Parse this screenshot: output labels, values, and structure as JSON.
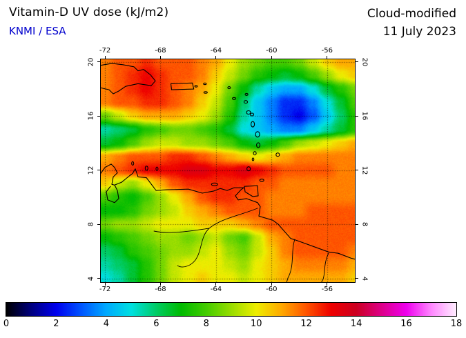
{
  "header": {
    "title": "Vitamin-D UV dose (kJ/m2)",
    "source": "KNMI / ESA",
    "mode": "Cloud-modified",
    "date": "11 July 2023"
  },
  "axes": {
    "lon_ticks": [
      {
        "v": -72,
        "label": "-72"
      },
      {
        "v": -68,
        "label": "-68"
      },
      {
        "v": -64,
        "label": "-64"
      },
      {
        "v": -60,
        "label": "-60"
      },
      {
        "v": -56,
        "label": "-56"
      }
    ],
    "lat_ticks": [
      {
        "v": 20,
        "label": "20"
      },
      {
        "v": 16,
        "label": "16"
      },
      {
        "v": 12,
        "label": "12"
      },
      {
        "v": 8,
        "label": "8"
      },
      {
        "v": 4,
        "label": "4"
      }
    ]
  },
  "colorbar": {
    "min": 0,
    "max": 18,
    "ticks": [
      {
        "v": 0,
        "label": "0"
      },
      {
        "v": 2,
        "label": "2"
      },
      {
        "v": 4,
        "label": "4"
      },
      {
        "v": 6,
        "label": "6"
      },
      {
        "v": 8,
        "label": "8"
      },
      {
        "v": 10,
        "label": "10"
      },
      {
        "v": 12,
        "label": "12"
      },
      {
        "v": 14,
        "label": "14"
      },
      {
        "v": 16,
        "label": "16"
      },
      {
        "v": 18,
        "label": "18"
      }
    ]
  },
  "chart_data": {
    "type": "heatmap",
    "title": "Vitamin-D UV dose (kJ/m2)",
    "subtitle": "Cloud-modified 11 July 2023",
    "source": "KNMI / ESA",
    "units": "kJ/m2",
    "scale_range": [
      0,
      18
    ],
    "view": {
      "lon_min": -72.35,
      "lon_max": -53.95,
      "lat_max": 20.25,
      "lat_min": 3.67
    },
    "lon": [
      -72,
      -71,
      -70,
      -69,
      -68,
      -67,
      -66,
      -65,
      -64,
      -63,
      -62,
      -61,
      -60,
      -59,
      -58,
      -57,
      -56,
      -55,
      -54
    ],
    "lat": [
      20,
      19,
      18,
      17,
      16,
      15,
      14,
      13,
      12,
      11,
      10,
      9,
      8,
      7,
      6,
      5,
      4
    ],
    "values": [
      [
        11.5,
        12,
        12,
        12.5,
        12,
        12,
        12,
        11.5,
        11,
        10,
        9,
        8.5,
        8,
        8,
        8.5,
        9.5,
        10.5,
        11,
        11
      ],
      [
        11.5,
        12,
        12.5,
        13,
        12.5,
        12,
        12,
        11.5,
        10.5,
        9.5,
        8.5,
        7.5,
        7,
        6.5,
        7,
        8,
        9,
        10,
        10.5
      ],
      [
        11.5,
        12,
        12.5,
        13,
        12.5,
        12,
        11.5,
        11,
        10,
        8.5,
        7,
        5.5,
        4.5,
        4,
        4,
        5,
        6.5,
        7.5,
        8.5
      ],
      [
        11.5,
        12,
        12,
        12.5,
        12.5,
        12,
        11.5,
        10.5,
        9.5,
        8,
        6,
        4.5,
        3.5,
        2.5,
        2.5,
        3.5,
        5,
        6.5,
        8
      ],
      [
        8.5,
        9.5,
        10.5,
        11,
        11,
        11,
        10.5,
        10,
        9,
        7.5,
        5.5,
        4.5,
        3.5,
        2.5,
        2,
        3,
        4.5,
        6,
        7.5
      ],
      [
        5.5,
        6,
        6.5,
        7.5,
        8,
        8.5,
        8.5,
        8,
        7.5,
        6.5,
        5,
        4.5,
        4,
        3.5,
        3.5,
        4.5,
        5.5,
        6.5,
        7.5
      ],
      [
        6.5,
        7,
        8,
        9,
        9.5,
        9.5,
        9,
        9,
        8.5,
        8,
        7,
        6.5,
        7,
        8,
        9,
        9.5,
        10,
        10.5,
        11
      ],
      [
        11,
        11.5,
        12,
        12,
        12,
        12.5,
        12.5,
        12,
        11.5,
        11,
        10.5,
        10,
        10.5,
        11,
        11.5,
        11.5,
        11.5,
        11.5,
        11.5
      ],
      [
        11.5,
        12,
        12.5,
        13,
        13,
        13,
        13.5,
        13.5,
        13,
        13,
        13.5,
        13,
        12.5,
        12,
        12,
        12,
        12,
        11.5,
        11.5
      ],
      [
        10.5,
        9.5,
        9,
        10,
        11,
        12,
        12.5,
        12.5,
        12.5,
        12.5,
        12.5,
        12,
        12,
        11.5,
        11.5,
        11.5,
        11.5,
        11.5,
        11.5
      ],
      [
        8,
        7.5,
        7,
        8,
        9,
        10,
        11,
        12,
        12.5,
        12.5,
        12,
        12,
        11.5,
        11.5,
        11.5,
        11.5,
        11.5,
        11.5,
        11.5
      ],
      [
        7,
        7,
        7.5,
        8.5,
        9,
        9.5,
        10.5,
        11,
        11.5,
        12,
        12,
        12,
        11.5,
        11.5,
        11.5,
        12,
        12,
        12,
        12
      ],
      [
        8.5,
        9,
        9,
        9.5,
        10,
        10,
        10,
        10.5,
        10.5,
        10.5,
        11,
        11.5,
        12,
        12,
        12,
        12,
        12,
        12,
        12
      ],
      [
        7,
        7.5,
        8,
        8.5,
        9,
        9,
        8.5,
        9,
        9.5,
        8.5,
        8,
        9.5,
        11,
        11.5,
        12,
        12,
        12,
        12,
        12
      ],
      [
        6,
        6.5,
        7.5,
        8,
        8.5,
        9,
        9,
        9.5,
        10,
        9,
        8.5,
        9.5,
        10.5,
        11.5,
        12,
        12,
        12,
        12,
        11.5
      ],
      [
        5.5,
        6,
        6.5,
        7.5,
        8.5,
        9.5,
        10,
        10,
        10,
        9.5,
        9,
        10,
        10.5,
        11,
        11.5,
        11.5,
        11.5,
        11.5,
        11
      ],
      [
        5,
        5.5,
        6.5,
        7.5,
        8.5,
        9.5,
        10,
        10.5,
        10,
        10,
        9.5,
        10,
        10.5,
        11,
        11,
        11,
        11,
        11,
        10.5
      ]
    ],
    "colormap_stops": [
      [
        0,
        "#000000"
      ],
      [
        1,
        "#00007f"
      ],
      [
        2,
        "#0000ee"
      ],
      [
        3,
        "#0055ff"
      ],
      [
        4,
        "#00aaff"
      ],
      [
        5,
        "#00e0e0"
      ],
      [
        6,
        "#00cc66"
      ],
      [
        7,
        "#00bb00"
      ],
      [
        8,
        "#44cc00"
      ],
      [
        9,
        "#99dd00"
      ],
      [
        10,
        "#eeee00"
      ],
      [
        11,
        "#ffaa00"
      ],
      [
        12,
        "#ff5500"
      ],
      [
        13,
        "#ee0000"
      ],
      [
        14,
        "#cc0022"
      ],
      [
        15,
        "#dd0088"
      ],
      [
        16,
        "#ee00ee"
      ],
      [
        17,
        "#ff88ff"
      ],
      [
        18,
        "#ffeeff"
      ]
    ],
    "legend_position": "bottom",
    "grid": "dotted"
  }
}
